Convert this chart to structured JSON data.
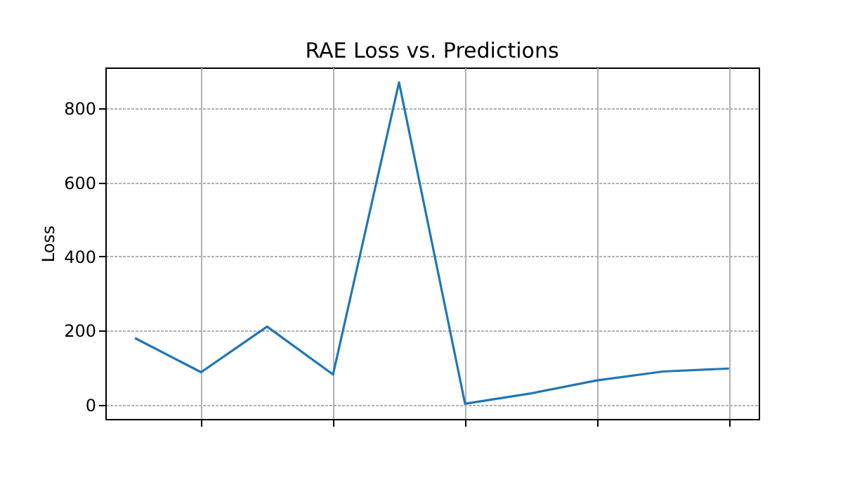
{
  "chart_data": {
    "type": "line",
    "title": "RAE Loss vs. Predictions",
    "ylabel": "Loss",
    "categories": [
      null,
      null,
      null,
      null,
      null,
      null,
      null,
      null,
      null,
      null
    ],
    "series": [
      {
        "color": "#1f77b4",
        "values": [
          180,
          88,
          211,
          82,
          870,
          3,
          31,
          66,
          90,
          98
        ]
      }
    ],
    "ylim": [
      -38,
      910
    ],
    "yticks": [
      0,
      200,
      400,
      600,
      800
    ],
    "grid": true,
    "marker": "none",
    "line_style": "solid"
  }
}
